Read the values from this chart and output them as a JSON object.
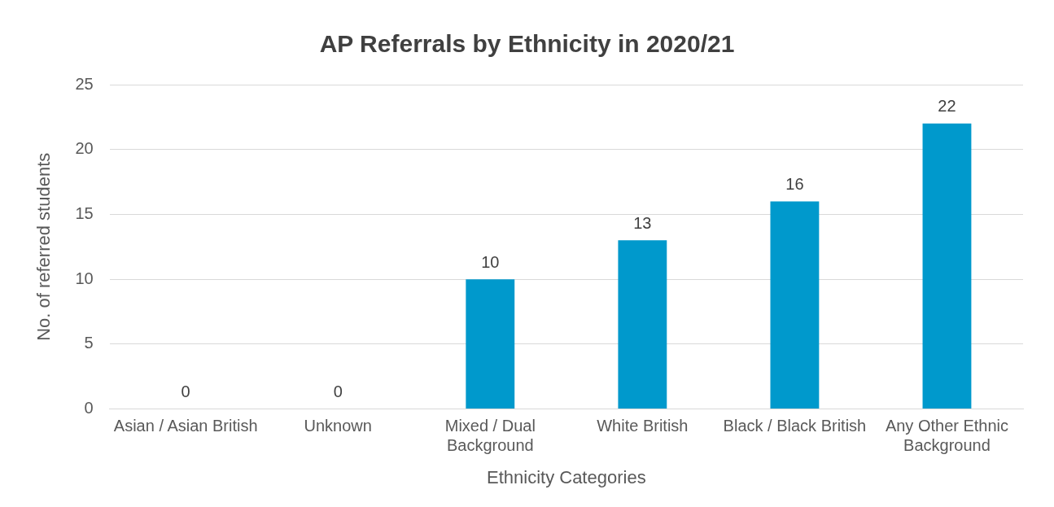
{
  "chart_data": {
    "type": "bar",
    "title": "AP Referrals by Ethnicity in 2020/21",
    "xlabel": "Ethnicity Categories",
    "ylabel": "No. of referred students",
    "categories": [
      "Asian / Asian British",
      "Unknown",
      "Mixed / Dual Background",
      "White British",
      "Black / Black British",
      "Any Other Ethnic Background"
    ],
    "values": [
      0,
      0,
      10,
      13,
      16,
      22
    ],
    "color": "#0099cc",
    "ylim": [
      0,
      25
    ],
    "yticks": [
      0,
      5,
      10,
      15,
      20,
      25
    ],
    "grid": "y",
    "legend": false,
    "data_labels": true
  }
}
